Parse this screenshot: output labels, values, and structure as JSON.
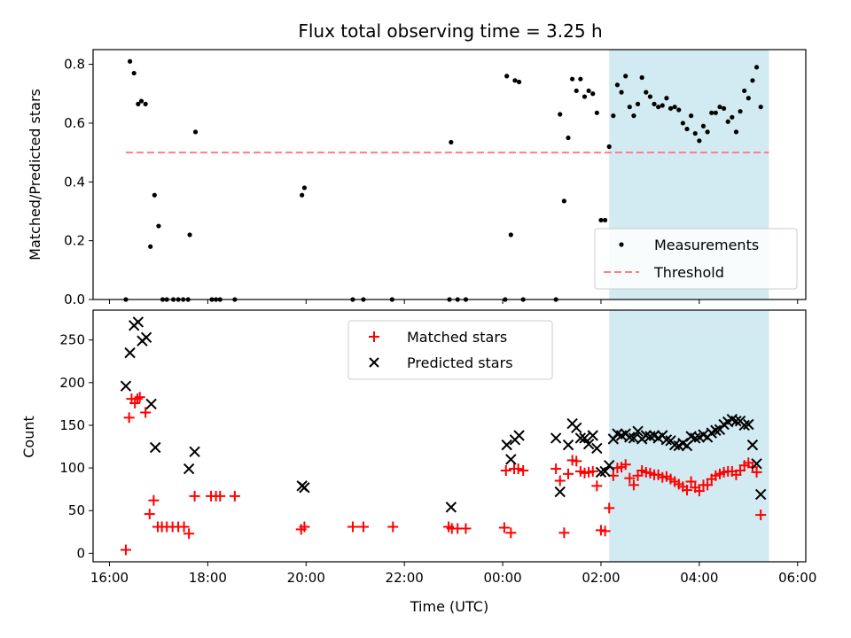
{
  "chart_data": [
    {
      "type": "scatter",
      "title": "Flux total observing time = 3.25 h",
      "xlabel": "",
      "ylabel": "Matched/Predicted stars",
      "ylim": [
        0,
        0.85
      ],
      "x_is_time_hours": true,
      "grid": false,
      "legend_position": "lower-right",
      "shaded_interval": {
        "x": [
          "02:10",
          "05:25"
        ],
        "color": "#add8e6"
      },
      "threshold": {
        "name": "Threshold",
        "value": 0.5,
        "x": [
          "16:20",
          "05:25"
        ],
        "color": "#ff7f7f",
        "style": "dashed"
      },
      "series": [
        {
          "name": "Measurements",
          "marker": "dot",
          "color": "#000000",
          "points": [
            [
              "16:20",
              0
            ],
            [
              "16:25",
              0.81
            ],
            [
              "16:30",
              0.77
            ],
            [
              "16:35",
              0.665
            ],
            [
              "16:39",
              0.675
            ],
            [
              "16:44",
              0.665
            ],
            [
              "16:50",
              0.18
            ],
            [
              "16:55",
              0.355
            ],
            [
              "17:00",
              0.25
            ],
            [
              "17:05",
              0
            ],
            [
              "17:10",
              0
            ],
            [
              "17:18",
              0
            ],
            [
              "17:24",
              0
            ],
            [
              "17:30",
              0
            ],
            [
              "17:36",
              0
            ],
            [
              "17:38",
              0.22
            ],
            [
              "17:45",
              0.57
            ],
            [
              "18:05",
              0
            ],
            [
              "18:10",
              0
            ],
            [
              "18:15",
              0
            ],
            [
              "18:33",
              0
            ],
            [
              "19:55",
              0.355
            ],
            [
              "19:58",
              0.38
            ],
            [
              "20:57",
              0
            ],
            [
              "21:10",
              0
            ],
            [
              "21:45",
              0
            ],
            [
              "22:55",
              0
            ],
            [
              "22:57",
              0.535
            ],
            [
              "23:05",
              0
            ],
            [
              "23:15",
              0
            ],
            [
              "00:03",
              0
            ],
            [
              "00:05",
              0.76
            ],
            [
              "00:10",
              0.22
            ],
            [
              "00:15",
              0.745
            ],
            [
              "00:20",
              0.74
            ],
            [
              "00:25",
              0
            ],
            [
              "01:05",
              0
            ],
            [
              "01:10",
              0.63
            ],
            [
              "01:15",
              0.335
            ],
            [
              "01:20",
              0.55
            ],
            [
              "01:25",
              0.75
            ],
            [
              "01:30",
              0.71
            ],
            [
              "01:35",
              0.75
            ],
            [
              "01:40",
              0.69
            ],
            [
              "01:45",
              0.71
            ],
            [
              "01:50",
              0.7
            ],
            [
              "01:55",
              0.635
            ],
            [
              "02:00",
              0.27
            ],
            [
              "02:05",
              0.27
            ],
            [
              "02:10",
              0.52
            ],
            [
              "02:15",
              0.625
            ],
            [
              "02:20",
              0.73
            ],
            [
              "02:25",
              0.705
            ],
            [
              "02:30",
              0.76
            ],
            [
              "02:35",
              0.655
            ],
            [
              "02:40",
              0.625
            ],
            [
              "02:45",
              0.665
            ],
            [
              "02:50",
              0.755
            ],
            [
              "02:55",
              0.705
            ],
            [
              "03:00",
              0.69
            ],
            [
              "03:05",
              0.665
            ],
            [
              "03:10",
              0.655
            ],
            [
              "03:15",
              0.66
            ],
            [
              "03:20",
              0.685
            ],
            [
              "03:25",
              0.65
            ],
            [
              "03:30",
              0.655
            ],
            [
              "03:35",
              0.645
            ],
            [
              "03:40",
              0.6
            ],
            [
              "03:45",
              0.58
            ],
            [
              "03:50",
              0.625
            ],
            [
              "03:55",
              0.565
            ],
            [
              "04:00",
              0.54
            ],
            [
              "04:05",
              0.59
            ],
            [
              "04:10",
              0.57
            ],
            [
              "04:15",
              0.635
            ],
            [
              "04:20",
              0.635
            ],
            [
              "04:25",
              0.655
            ],
            [
              "04:30",
              0.65
            ],
            [
              "04:35",
              0.605
            ],
            [
              "04:40",
              0.62
            ],
            [
              "04:45",
              0.57
            ],
            [
              "04:50",
              0.64
            ],
            [
              "04:55",
              0.71
            ],
            [
              "05:00",
              0.685
            ],
            [
              "05:05",
              0.745
            ],
            [
              "05:10",
              0.79
            ],
            [
              "05:15",
              0.655
            ]
          ]
        }
      ]
    },
    {
      "type": "scatter",
      "title": "",
      "xlabel": "Time (UTC)",
      "ylabel": "Count",
      "ylim": [
        -10,
        285
      ],
      "x_is_time_hours": true,
      "xlim": [
        "15:40",
        "06:10"
      ],
      "x_ticks": [
        "16:00",
        "18:00",
        "20:00",
        "22:00",
        "00:00",
        "02:00",
        "04:00",
        "06:00"
      ],
      "y_ticks": [
        0,
        50,
        100,
        150,
        200,
        250
      ],
      "grid": false,
      "legend_position": "upper-center",
      "shaded_interval": {
        "x": [
          "02:10",
          "05:25"
        ],
        "color": "#add8e6"
      },
      "series": [
        {
          "name": "Matched stars",
          "marker": "plus",
          "color": "#ff0000",
          "points": [
            [
              "16:20",
              4
            ],
            [
              "16:24",
              159
            ],
            [
              "16:27",
              181
            ],
            [
              "16:31",
              176
            ],
            [
              "16:34",
              181
            ],
            [
              "16:37",
              183
            ],
            [
              "16:44",
              165
            ],
            [
              "16:49",
              46
            ],
            [
              "16:54",
              62
            ],
            [
              "16:59",
              31
            ],
            [
              "17:04",
              31
            ],
            [
              "17:10",
              31
            ],
            [
              "17:17",
              31
            ],
            [
              "17:24",
              31
            ],
            [
              "17:31",
              31
            ],
            [
              "17:37",
              23
            ],
            [
              "17:44",
              67
            ],
            [
              "18:04",
              67
            ],
            [
              "18:10",
              67
            ],
            [
              "18:15",
              67
            ],
            [
              "18:33",
              67
            ],
            [
              "19:54",
              28
            ],
            [
              "19:58",
              31
            ],
            [
              "20:57",
              31
            ],
            [
              "21:10",
              31
            ],
            [
              "21:46",
              31
            ],
            [
              "22:54",
              31
            ],
            [
              "22:58",
              29
            ],
            [
              "23:05",
              29
            ],
            [
              "23:15",
              29
            ],
            [
              "00:02",
              30
            ],
            [
              "00:04",
              97
            ],
            [
              "00:10",
              24
            ],
            [
              "00:14",
              99
            ],
            [
              "00:19",
              99
            ],
            [
              "00:25",
              97
            ],
            [
              "01:05",
              99
            ],
            [
              "01:10",
              85
            ],
            [
              "01:15",
              24
            ],
            [
              "01:20",
              93
            ],
            [
              "01:25",
              109
            ],
            [
              "01:30",
              108
            ],
            [
              "01:35",
              96
            ],
            [
              "01:40",
              94
            ],
            [
              "01:45",
              95
            ],
            [
              "01:50",
              96
            ],
            [
              "01:55",
              79
            ],
            [
              "02:00",
              27
            ],
            [
              "02:05",
              26
            ],
            [
              "02:10",
              53
            ],
            [
              "02:15",
              91
            ],
            [
              "02:20",
              100
            ],
            [
              "02:25",
              101
            ],
            [
              "02:30",
              104
            ],
            [
              "02:35",
              88
            ],
            [
              "02:40",
              80
            ],
            [
              "02:45",
              91
            ],
            [
              "02:50",
              97
            ],
            [
              "02:55",
              95
            ],
            [
              "03:00",
              94
            ],
            [
              "03:05",
              92
            ],
            [
              "03:10",
              92
            ],
            [
              "03:15",
              89
            ],
            [
              "03:20",
              90
            ],
            [
              "03:25",
              87
            ],
            [
              "03:30",
              84
            ],
            [
              "03:35",
              81
            ],
            [
              "03:40",
              78
            ],
            [
              "03:45",
              74
            ],
            [
              "03:50",
              84
            ],
            [
              "03:55",
              77
            ],
            [
              "04:00",
              73
            ],
            [
              "04:05",
              80
            ],
            [
              "04:10",
              80
            ],
            [
              "04:15",
              87
            ],
            [
              "04:20",
              91
            ],
            [
              "04:25",
              93
            ],
            [
              "04:30",
              95
            ],
            [
              "04:35",
              96
            ],
            [
              "04:40",
              96
            ],
            [
              "04:45",
              92
            ],
            [
              "04:50",
              97
            ],
            [
              "04:55",
              103
            ],
            [
              "05:00",
              106
            ],
            [
              "05:05",
              101
            ],
            [
              "05:10",
              95
            ],
            [
              "05:15",
              45
            ]
          ]
        },
        {
          "name": "Predicted stars",
          "marker": "x",
          "color": "#000000",
          "points": [
            [
              "16:20",
              196
            ],
            [
              "16:25",
              235
            ],
            [
              "16:30",
              267
            ],
            [
              "16:35",
              271
            ],
            [
              "16:40",
              249
            ],
            [
              "16:45",
              253
            ],
            [
              "16:51",
              175
            ],
            [
              "16:56",
              124
            ],
            [
              "17:37",
              99
            ],
            [
              "17:44",
              119
            ],
            [
              "19:55",
              79
            ],
            [
              "19:58",
              77
            ],
            [
              "22:57",
              54
            ],
            [
              "00:05",
              127
            ],
            [
              "00:10",
              110
            ],
            [
              "00:15",
              133
            ],
            [
              "00:20",
              138
            ],
            [
              "01:05",
              135
            ],
            [
              "01:10",
              72
            ],
            [
              "01:20",
              127
            ],
            [
              "01:25",
              152
            ],
            [
              "01:30",
              147
            ],
            [
              "01:35",
              135
            ],
            [
              "01:40",
              135
            ],
            [
              "01:45",
              128
            ],
            [
              "01:50",
              138
            ],
            [
              "01:55",
              123
            ],
            [
              "02:00",
              95
            ],
            [
              "02:05",
              96
            ],
            [
              "02:10",
              103
            ],
            [
              "02:15",
              134
            ],
            [
              "02:20",
              140
            ],
            [
              "02:25",
              138
            ],
            [
              "02:30",
              140
            ],
            [
              "02:35",
              136
            ],
            [
              "02:40",
              135
            ],
            [
              "02:45",
              143
            ],
            [
              "02:50",
              134
            ],
            [
              "02:55",
              138
            ],
            [
              "03:00",
              137
            ],
            [
              "03:05",
              138
            ],
            [
              "03:10",
              135
            ],
            [
              "03:15",
              138
            ],
            [
              "03:20",
              133
            ],
            [
              "03:25",
              132
            ],
            [
              "03:30",
              127
            ],
            [
              "03:35",
              126
            ],
            [
              "03:40",
              129
            ],
            [
              "03:45",
              126
            ],
            [
              "03:50",
              137
            ],
            [
              "03:55",
              135
            ],
            [
              "04:00",
              136
            ],
            [
              "04:05",
              139
            ],
            [
              "04:10",
              136
            ],
            [
              "04:15",
              141
            ],
            [
              "04:20",
              144
            ],
            [
              "04:25",
              145
            ],
            [
              "04:30",
              151
            ],
            [
              "04:35",
              154
            ],
            [
              "04:40",
              157
            ],
            [
              "04:45",
              155
            ],
            [
              "04:50",
              155
            ],
            [
              "04:55",
              150
            ],
            [
              "05:00",
              151
            ],
            [
              "05:05",
              127
            ],
            [
              "05:10",
              105
            ],
            [
              "05:15",
              69
            ]
          ]
        }
      ]
    }
  ]
}
